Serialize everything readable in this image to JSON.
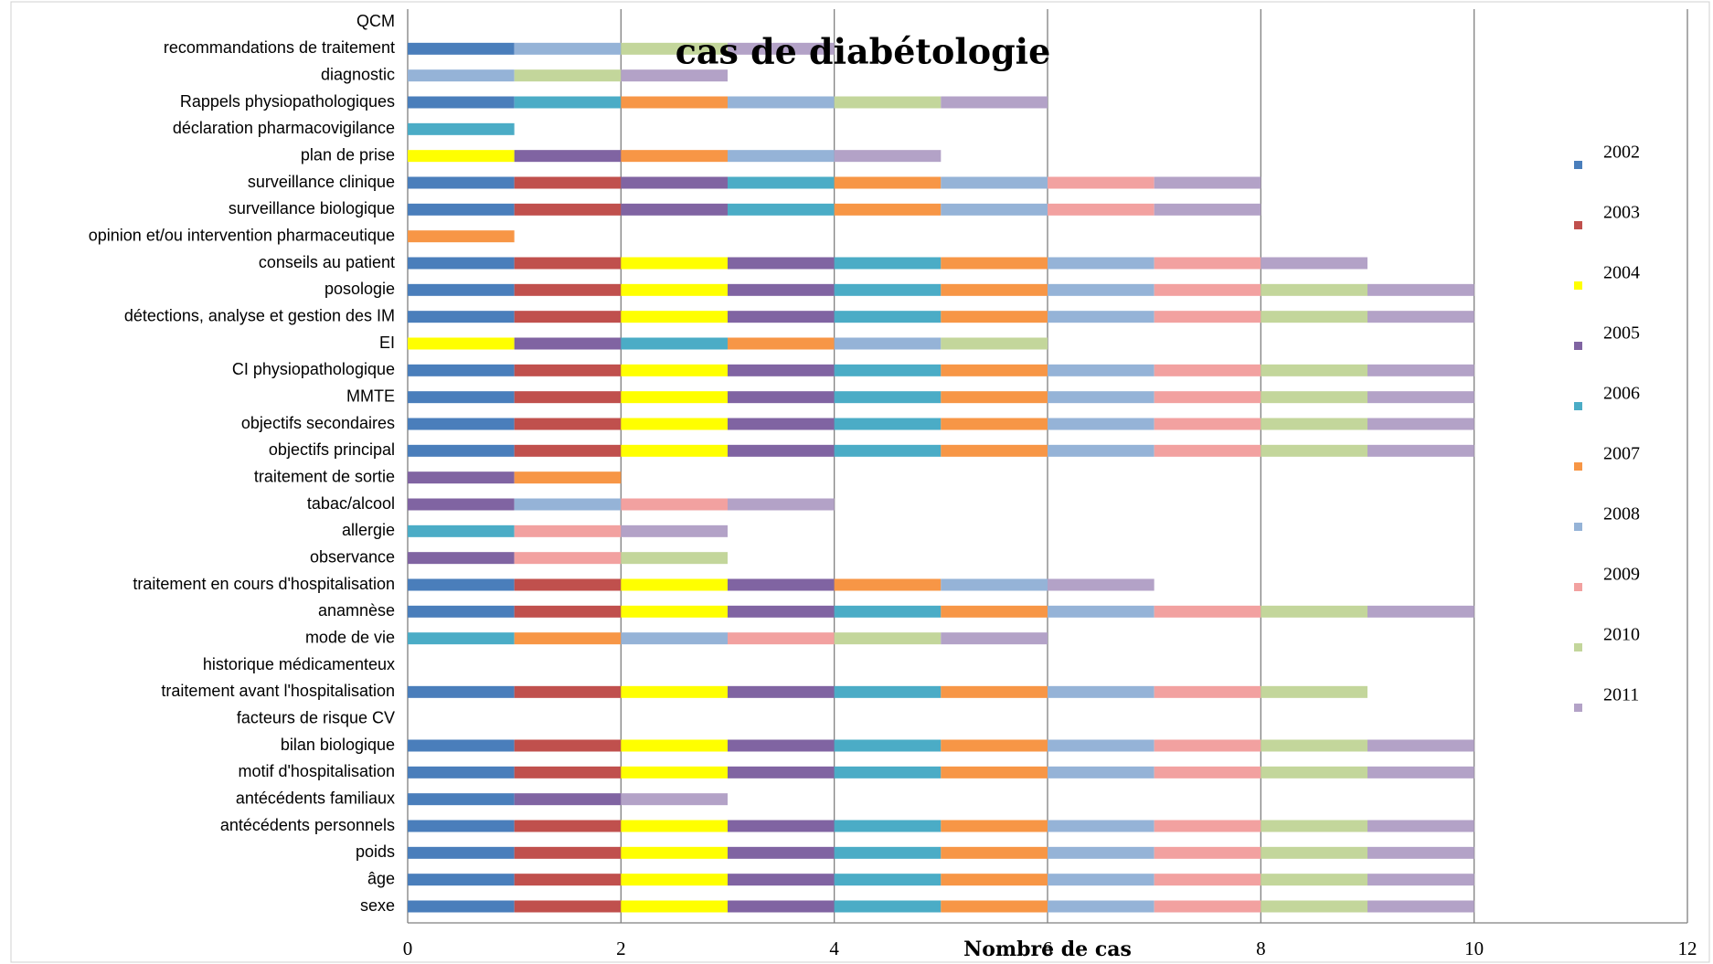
{
  "chart_data": {
    "type": "stacked_barh",
    "title": "cas de diabétologie",
    "x_label": "Nombre de cas",
    "categories": [
      "sexe",
      "âge",
      "poids",
      "antécédents personnels",
      "antécédents familiaux",
      "motif d'hospitalisation",
      "bilan biologique",
      "facteurs de risque CV",
      "traitement avant l'hospitalisation",
      "historique médicamenteux",
      "mode de vie",
      "anamnèse",
      "traitement en cours d'hospitalisation",
      "observance",
      "allergie",
      "tabac/alcool",
      "traitement de sortie",
      "objectifs principal",
      "objectifs secondaires",
      "MMTE",
      "CI physiopathologique",
      "EI",
      "détections, analyse et gestion des IM",
      "posologie",
      "conseils au patient",
      "opinion et/ou intervention pharmaceutique",
      "surveillance biologique",
      "surveillance clinique",
      "plan de prise",
      "déclaration pharmacovigilance",
      "Rappels physiopathologiques",
      "diagnostic",
      "recommandations de traitement",
      "QCM"
    ],
    "series": [
      {
        "name": "2002",
        "color": "#4a7ebb",
        "values": [
          1,
          1,
          1,
          1,
          1,
          1,
          1,
          0,
          1,
          0,
          0,
          1,
          1,
          0,
          0,
          0,
          0,
          1,
          1,
          1,
          1,
          0,
          1,
          1,
          1,
          0,
          1,
          1,
          0,
          0,
          1,
          0,
          1,
          0
        ]
      },
      {
        "name": "2003",
        "color": "#c0504d",
        "values": [
          1,
          1,
          1,
          1,
          0,
          1,
          1,
          0,
          1,
          0,
          0,
          1,
          1,
          0,
          0,
          0,
          0,
          1,
          1,
          1,
          1,
          0,
          1,
          1,
          1,
          0,
          1,
          1,
          0,
          0,
          0,
          0,
          0,
          0
        ]
      },
      {
        "name": "2004",
        "color": "#ffff00",
        "values": [
          1,
          1,
          1,
          1,
          0,
          1,
          1,
          0,
          1,
          0,
          0,
          1,
          1,
          0,
          0,
          0,
          0,
          1,
          1,
          1,
          1,
          1,
          1,
          1,
          1,
          0,
          0,
          0,
          1,
          0,
          0,
          0,
          0,
          0
        ]
      },
      {
        "name": "2005",
        "color": "#8064a2",
        "values": [
          1,
          1,
          1,
          1,
          1,
          1,
          1,
          0,
          1,
          0,
          0,
          1,
          1,
          1,
          0,
          1,
          1,
          1,
          1,
          1,
          1,
          1,
          1,
          1,
          1,
          0,
          1,
          1,
          1,
          0,
          0,
          0,
          0,
          0
        ]
      },
      {
        "name": "2006",
        "color": "#4bacc6",
        "values": [
          1,
          1,
          1,
          1,
          0,
          1,
          1,
          0,
          1,
          0,
          1,
          1,
          0,
          0,
          1,
          0,
          0,
          1,
          1,
          1,
          1,
          1,
          1,
          1,
          1,
          0,
          1,
          1,
          0,
          1,
          1,
          0,
          0,
          0
        ]
      },
      {
        "name": "2007",
        "color": "#f79646",
        "values": [
          1,
          1,
          1,
          1,
          0,
          1,
          1,
          0,
          1,
          0,
          1,
          1,
          1,
          0,
          0,
          0,
          1,
          1,
          1,
          1,
          1,
          1,
          1,
          1,
          1,
          1,
          1,
          1,
          1,
          0,
          1,
          0,
          0,
          0
        ]
      },
      {
        "name": "2008",
        "color": "#95b3d7",
        "values": [
          1,
          1,
          1,
          1,
          0,
          1,
          1,
          0,
          1,
          0,
          1,
          1,
          1,
          0,
          0,
          1,
          0,
          1,
          1,
          1,
          1,
          1,
          1,
          1,
          1,
          0,
          1,
          1,
          1,
          0,
          1,
          1,
          1,
          0
        ]
      },
      {
        "name": "2009",
        "color": "#f2a1a0",
        "values": [
          1,
          1,
          1,
          1,
          0,
          1,
          1,
          0,
          1,
          0,
          1,
          1,
          0,
          1,
          1,
          1,
          0,
          1,
          1,
          1,
          1,
          0,
          1,
          1,
          1,
          0,
          1,
          1,
          0,
          0,
          0,
          0,
          0,
          0
        ]
      },
      {
        "name": "2010",
        "color": "#c3d69b",
        "values": [
          1,
          1,
          1,
          1,
          0,
          1,
          1,
          0,
          1,
          0,
          1,
          1,
          0,
          1,
          0,
          0,
          0,
          1,
          1,
          1,
          1,
          1,
          1,
          1,
          0,
          0,
          0,
          0,
          0,
          0,
          1,
          1,
          1,
          0
        ]
      },
      {
        "name": "2011",
        "color": "#b3a2c7",
        "values": [
          1,
          1,
          1,
          1,
          1,
          1,
          1,
          0,
          0,
          0,
          1,
          1,
          1,
          0,
          1,
          1,
          0,
          1,
          1,
          1,
          1,
          0,
          1,
          1,
          1,
          0,
          1,
          1,
          1,
          0,
          1,
          1,
          1,
          0
        ]
      }
    ],
    "xlim": [
      0,
      12
    ],
    "xticks": [
      0,
      2,
      4,
      6,
      8,
      10,
      12
    ],
    "grid": true,
    "legend": "right"
  }
}
